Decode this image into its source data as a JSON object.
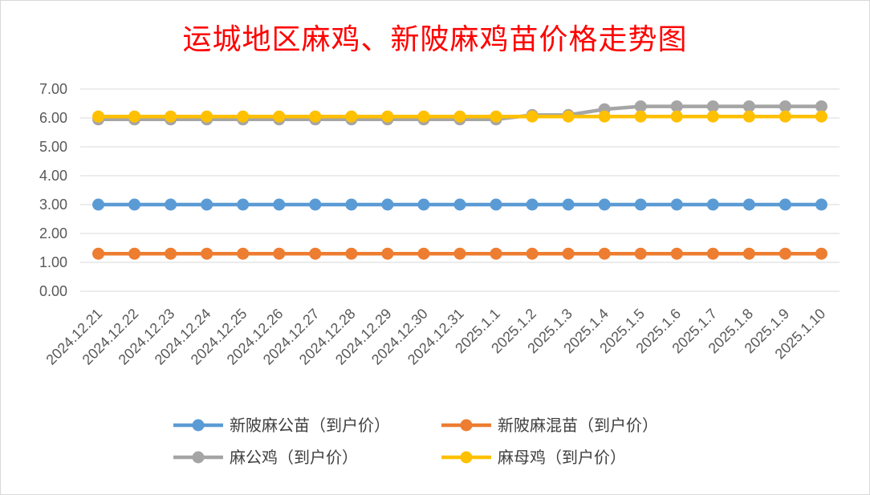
{
  "chart_data": {
    "type": "line",
    "title": "运城地区麻鸡、新陂麻鸡苗价格走势图",
    "xlabel": "",
    "ylabel": "",
    "categories": [
      "2024.12.21",
      "2024.12.22",
      "2024.12.23",
      "2024.12.24",
      "2024.12.25",
      "2024.12.26",
      "2024.12.27",
      "2024.12.28",
      "2024.12.29",
      "2024.12.30",
      "2024.12.31",
      "2025.1.1",
      "2025.1.2",
      "2025.1.3",
      "2025.1.4",
      "2025.1.5",
      "2025.1.6",
      "2025.1.7",
      "2025.1.8",
      "2025.1.9",
      "2025.1.10"
    ],
    "y_ticks": [
      "0.00",
      "1.00",
      "2.00",
      "3.00",
      "4.00",
      "5.00",
      "6.00",
      "7.00"
    ],
    "ylim": [
      0,
      7
    ],
    "grid": true,
    "legend_position": "bottom",
    "series": [
      {
        "name": "新陂麻公苗（到户价）",
        "color": "#5b9bd5",
        "values": [
          3,
          3,
          3,
          3,
          3,
          3,
          3,
          3,
          3,
          3,
          3,
          3,
          3,
          3,
          3,
          3,
          3,
          3,
          3,
          3,
          3
        ]
      },
      {
        "name": "新陂麻混苗（到户价）",
        "color": "#ed7d31",
        "values": [
          1.3,
          1.3,
          1.3,
          1.3,
          1.3,
          1.3,
          1.3,
          1.3,
          1.3,
          1.3,
          1.3,
          1.3,
          1.3,
          1.3,
          1.3,
          1.3,
          1.3,
          1.3,
          1.3,
          1.3,
          1.3
        ]
      },
      {
        "name": "麻公鸡（到户价）",
        "color": "#a5a5a5",
        "values": [
          5.95,
          5.95,
          5.95,
          5.95,
          5.95,
          5.95,
          5.95,
          5.95,
          5.95,
          5.95,
          5.95,
          5.95,
          6.1,
          6.1,
          6.3,
          6.4,
          6.4,
          6.4,
          6.4,
          6.4,
          6.4
        ]
      },
      {
        "name": "麻母鸡（到户价）",
        "color": "#ffc000",
        "values": [
          6.05,
          6.05,
          6.05,
          6.05,
          6.05,
          6.05,
          6.05,
          6.05,
          6.05,
          6.05,
          6.05,
          6.05,
          6.05,
          6.05,
          6.05,
          6.05,
          6.05,
          6.05,
          6.05,
          6.05,
          6.05
        ]
      }
    ]
  }
}
